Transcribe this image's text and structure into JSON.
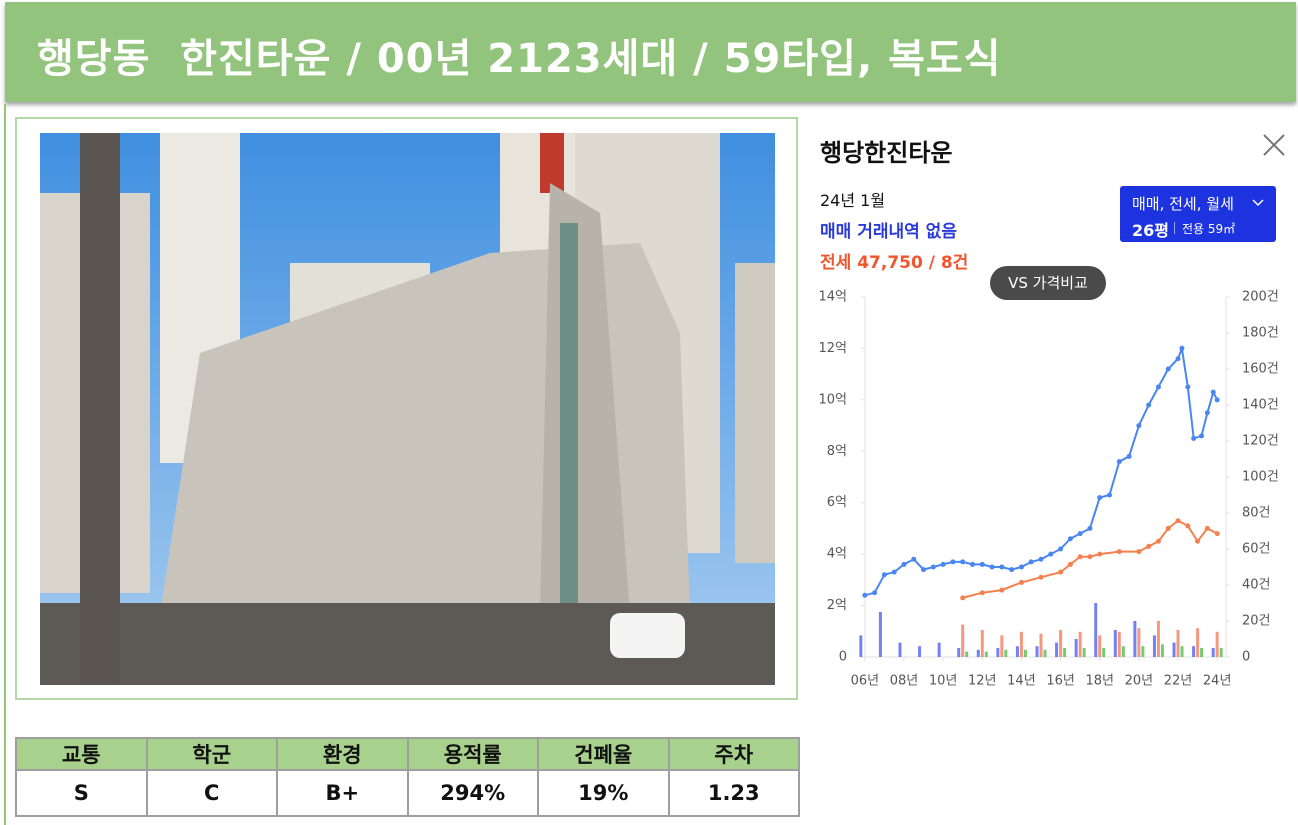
{
  "header": {
    "title": "행당동  한진타운 / 00년 2123세대 / 59타입, 복도식"
  },
  "panel": {
    "title": "행당한진타운",
    "date": "24년 1월",
    "sale": "매매 거래내역 없음",
    "jeonse": "전세 47,750 / 8건",
    "filter": "매매, 전세, 월세",
    "size": "26평",
    "area": "전용 59㎡",
    "compare": "VS 가격비교"
  },
  "chart_data": {
    "type": "line",
    "xlim": [
      5.6,
      24.4
    ],
    "xticks": [
      {
        "value": 6,
        "label": "06년"
      },
      {
        "value": 8,
        "label": "08년"
      },
      {
        "value": 10,
        "label": "10년"
      },
      {
        "value": 12,
        "label": "12년"
      },
      {
        "value": 14,
        "label": "14년"
      },
      {
        "value": 16,
        "label": "16년"
      },
      {
        "value": 18,
        "label": "18년"
      },
      {
        "value": 20,
        "label": "20년"
      },
      {
        "value": 22,
        "label": "22년"
      },
      {
        "value": 24,
        "label": "24년"
      }
    ],
    "ylim": [
      0,
      14
    ],
    "yticks": [
      0,
      {
        "value": 2,
        "label": "2억"
      },
      {
        "value": 4,
        "label": "4억"
      },
      {
        "value": 6,
        "label": "6억"
      },
      {
        "value": 8,
        "label": "8억"
      },
      {
        "value": 10,
        "label": "10억"
      },
      {
        "value": 12,
        "label": "12억"
      },
      {
        "value": 14,
        "label": "14억"
      }
    ],
    "y2lim": [
      0,
      200
    ],
    "y2ticks": [
      0,
      {
        "value": 20,
        "label": "20건"
      },
      {
        "value": 40,
        "label": "40건"
      },
      {
        "value": 60,
        "label": "60건"
      },
      {
        "value": 80,
        "label": "80건"
      },
      {
        "value": 100,
        "label": "100건"
      },
      {
        "value": 120,
        "label": "120건"
      },
      {
        "value": 140,
        "label": "140건"
      },
      {
        "value": 160,
        "label": "160건"
      },
      {
        "value": 180,
        "label": "180건"
      },
      {
        "value": 200,
        "label": "200건"
      }
    ],
    "grid": false,
    "series": [
      {
        "type": "bar",
        "axis": "y2",
        "color": "#5b6cf0",
        "x": [
          6,
          7,
          8,
          9,
          10,
          11,
          12,
          13,
          14,
          15,
          16,
          17,
          18,
          19,
          20,
          21,
          22,
          23,
          24
        ],
        "values": [
          12,
          25,
          8,
          6,
          8,
          5,
          4,
          5,
          6,
          6,
          8,
          10,
          30,
          15,
          20,
          12,
          8,
          6,
          5
        ]
      },
      {
        "type": "bar",
        "axis": "y2",
        "color": "#f5866a",
        "x": [
          6,
          7,
          8,
          9,
          10,
          11,
          12,
          13,
          14,
          15,
          16,
          17,
          18,
          19,
          20,
          21,
          22,
          23,
          24
        ],
        "values": [
          null,
          null,
          null,
          null,
          null,
          18,
          15,
          12,
          14,
          13,
          15,
          14,
          12,
          14,
          16,
          20,
          15,
          16,
          14
        ]
      },
      {
        "type": "bar",
        "axis": "y2",
        "color": "#5cc25c",
        "x": [
          6,
          7,
          8,
          9,
          10,
          11,
          12,
          13,
          14,
          15,
          16,
          17,
          18,
          19,
          20,
          21,
          22,
          23,
          24
        ],
        "values": [
          null,
          null,
          null,
          null,
          null,
          3,
          3,
          4,
          4,
          4,
          5,
          5,
          5,
          6,
          6,
          7,
          6,
          5,
          5
        ]
      },
      {
        "type": "line",
        "color": "#4a86f0",
        "x": [
          6,
          6.5,
          7,
          7.5,
          8,
          8.5,
          9,
          9.5,
          10,
          10.5,
          11,
          11.5,
          12,
          12.5,
          13,
          13.5,
          14,
          14.5,
          15,
          15.5,
          16,
          16.5,
          17,
          17.5,
          18,
          18.5,
          19,
          19.5,
          20,
          20.5,
          21,
          21.5,
          22,
          22.2,
          22.5,
          22.8,
          23.2,
          23.5,
          23.8,
          24
        ],
        "values": [
          2.4,
          2.5,
          3.2,
          3.3,
          3.6,
          3.8,
          3.4,
          3.5,
          3.6,
          3.7,
          3.7,
          3.6,
          3.6,
          3.5,
          3.5,
          3.4,
          3.5,
          3.7,
          3.8,
          4.0,
          4.2,
          4.6,
          4.8,
          5.0,
          6.2,
          6.3,
          7.6,
          7.8,
          9.0,
          9.8,
          10.5,
          11.2,
          11.6,
          12.0,
          10.5,
          8.5,
          8.6,
          9.5,
          10.3,
          10.0
        ]
      },
      {
        "type": "line",
        "color": "#f5804f",
        "x": [
          11,
          12,
          13,
          14,
          15,
          16,
          16.5,
          17,
          17.5,
          18,
          19,
          20,
          20.5,
          21,
          21.5,
          22,
          22.5,
          23,
          23.5,
          24
        ],
        "values": [
          2.3,
          2.5,
          2.6,
          2.9,
          3.1,
          3.3,
          3.6,
          3.9,
          3.9,
          4.0,
          4.1,
          4.1,
          4.3,
          4.5,
          5.0,
          5.3,
          5.1,
          4.5,
          5.0,
          4.8
        ]
      }
    ]
  },
  "table": {
    "headers": [
      "교통",
      "학군",
      "환경",
      "용적률",
      "건폐율",
      "주차"
    ],
    "rows": [
      [
        "S",
        "C",
        "B+",
        "294%",
        "19%",
        "1.23"
      ]
    ]
  }
}
